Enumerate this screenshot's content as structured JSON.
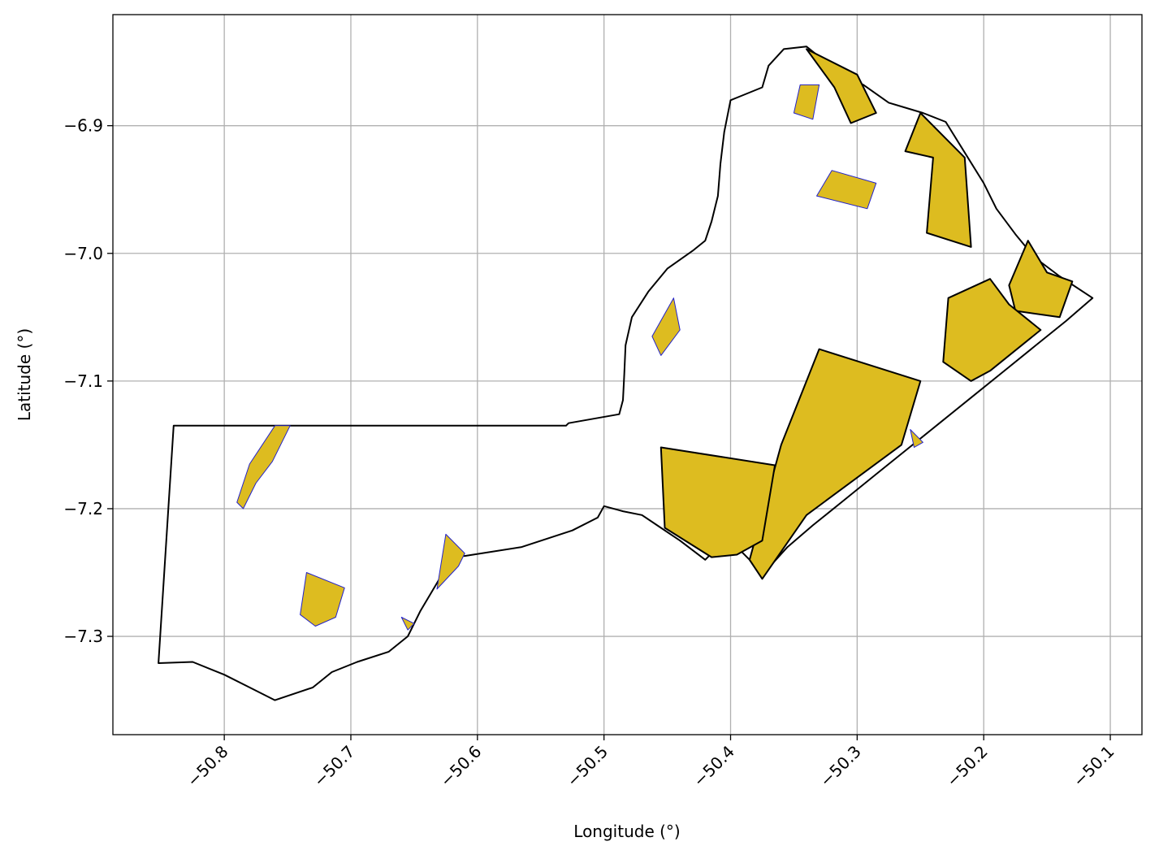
{
  "chart_data": {
    "type": "map",
    "xlabel": "Longitude (°)",
    "ylabel": "Latitude (°)",
    "xlim": [
      -50.888,
      -50.075
    ],
    "ylim": [
      -7.377,
      -6.813
    ],
    "xticks": [
      -50.8,
      -50.7,
      -50.6,
      -50.5,
      -50.4,
      -50.3,
      -50.2,
      -50.1
    ],
    "yticks": [
      -6.9,
      -7.0,
      -7.1,
      -7.2,
      -7.3
    ],
    "xtick_labels": [
      "−50.8",
      "−50.7",
      "−50.6",
      "−50.5",
      "−50.4",
      "−50.3",
      "−50.2",
      "−50.1"
    ],
    "ytick_labels": [
      "−6.9",
      "−7.0",
      "−7.1",
      "−7.2",
      "−7.3"
    ],
    "grid": true,
    "colors": {
      "fill": "#DDBC20",
      "inner_edge": "#2222CC",
      "outer_edge": "#000000",
      "grid": "#B0B0B0"
    },
    "boundary": [
      [
        -50.84,
        -7.135
      ],
      [
        -50.53,
        -7.135
      ],
      [
        -50.528,
        -7.133
      ],
      [
        -50.488,
        -7.126
      ],
      [
        -50.485,
        -7.115
      ],
      [
        -50.484,
        -7.095
      ],
      [
        -50.483,
        -7.072
      ],
      [
        -50.478,
        -7.05
      ],
      [
        -50.465,
        -7.03
      ],
      [
        -50.45,
        -7.012
      ],
      [
        -50.43,
        -6.998
      ],
      [
        -50.42,
        -6.99
      ],
      [
        -50.415,
        -6.975
      ],
      [
        -50.41,
        -6.955
      ],
      [
        -50.408,
        -6.93
      ],
      [
        -50.405,
        -6.905
      ],
      [
        -50.4,
        -6.88
      ],
      [
        -50.39,
        -6.876
      ],
      [
        -50.375,
        -6.87
      ],
      [
        -50.37,
        -6.853
      ],
      [
        -50.358,
        -6.84
      ],
      [
        -50.34,
        -6.838
      ],
      [
        -50.33,
        -6.846
      ],
      [
        -50.318,
        -6.857
      ],
      [
        -50.295,
        -6.868
      ],
      [
        -50.275,
        -6.882
      ],
      [
        -50.248,
        -6.89
      ],
      [
        -50.23,
        -6.897
      ],
      [
        -50.215,
        -6.921
      ],
      [
        -50.2,
        -6.945
      ],
      [
        -50.19,
        -6.965
      ],
      [
        -50.175,
        -6.985
      ],
      [
        -50.16,
        -7.003
      ],
      [
        -50.14,
        -7.018
      ],
      [
        -50.114,
        -7.035
      ],
      [
        -50.135,
        -7.053
      ],
      [
        -50.16,
        -7.073
      ],
      [
        -50.185,
        -7.093
      ],
      [
        -50.21,
        -7.113
      ],
      [
        -50.235,
        -7.133
      ],
      [
        -50.26,
        -7.153
      ],
      [
        -50.285,
        -7.173
      ],
      [
        -50.31,
        -7.193
      ],
      [
        -50.335,
        -7.213
      ],
      [
        -50.355,
        -7.23
      ],
      [
        -50.376,
        -7.253
      ],
      [
        -50.385,
        -7.24
      ],
      [
        -50.395,
        -7.23
      ],
      [
        -50.41,
        -7.23
      ],
      [
        -50.42,
        -7.24
      ],
      [
        -50.44,
        -7.225
      ],
      [
        -50.455,
        -7.215
      ],
      [
        -50.47,
        -7.205
      ],
      [
        -50.485,
        -7.202
      ],
      [
        -50.5,
        -7.198
      ],
      [
        -50.505,
        -7.207
      ],
      [
        -50.525,
        -7.217
      ],
      [
        -50.565,
        -7.23
      ],
      [
        -50.61,
        -7.237
      ],
      [
        -50.62,
        -7.237
      ],
      [
        -50.63,
        -7.255
      ],
      [
        -50.645,
        -7.28
      ],
      [
        -50.655,
        -7.3
      ],
      [
        -50.67,
        -7.312
      ],
      [
        -50.695,
        -7.32
      ],
      [
        -50.715,
        -7.328
      ],
      [
        -50.73,
        -7.34
      ],
      [
        -50.76,
        -7.35
      ],
      [
        -50.78,
        -7.34
      ],
      [
        -50.8,
        -7.33
      ],
      [
        -50.825,
        -7.32
      ],
      [
        -50.852,
        -7.321
      ]
    ],
    "outer_parcels": [
      [
        [
          -50.33,
          -7.075
        ],
        [
          -50.25,
          -7.1
        ],
        [
          -50.265,
          -7.15
        ],
        [
          -50.34,
          -7.205
        ],
        [
          -50.375,
          -7.255
        ],
        [
          -50.385,
          -7.24
        ],
        [
          -50.36,
          -7.15
        ]
      ],
      [
        [
          -50.455,
          -7.152
        ],
        [
          -50.365,
          -7.166
        ],
        [
          -50.375,
          -7.225
        ],
        [
          -50.395,
          -7.236
        ],
        [
          -50.415,
          -7.238
        ],
        [
          -50.452,
          -7.215
        ]
      ],
      [
        [
          -50.25,
          -6.89
        ],
        [
          -50.215,
          -6.925
        ],
        [
          -50.21,
          -6.995
        ],
        [
          -50.245,
          -6.984
        ],
        [
          -50.24,
          -6.925
        ],
        [
          -50.262,
          -6.92
        ]
      ],
      [
        [
          -50.165,
          -6.99
        ],
        [
          -50.15,
          -7.015
        ],
        [
          -50.13,
          -7.022
        ],
        [
          -50.14,
          -7.05
        ],
        [
          -50.175,
          -7.045
        ],
        [
          -50.18,
          -7.025
        ]
      ],
      [
        [
          -50.195,
          -7.02
        ],
        [
          -50.18,
          -7.04
        ],
        [
          -50.155,
          -7.06
        ],
        [
          -50.195,
          -7.092
        ],
        [
          -50.21,
          -7.1
        ],
        [
          -50.232,
          -7.085
        ],
        [
          -50.228,
          -7.035
        ]
      ],
      [
        [
          -50.34,
          -6.84
        ],
        [
          -50.3,
          -6.86
        ],
        [
          -50.285,
          -6.89
        ],
        [
          -50.305,
          -6.898
        ],
        [
          -50.318,
          -6.87
        ]
      ]
    ],
    "inner_parcels": [
      [
        [
          -50.76,
          -7.135
        ],
        [
          -50.748,
          -7.135
        ],
        [
          -50.762,
          -7.163
        ],
        [
          -50.775,
          -7.18
        ],
        [
          -50.785,
          -7.2
        ],
        [
          -50.79,
          -7.195
        ],
        [
          -50.78,
          -7.165
        ]
      ],
      [
        [
          -50.735,
          -7.25
        ],
        [
          -50.705,
          -7.262
        ],
        [
          -50.712,
          -7.285
        ],
        [
          -50.728,
          -7.292
        ],
        [
          -50.74,
          -7.283
        ]
      ],
      [
        [
          -50.625,
          -7.22
        ],
        [
          -50.61,
          -7.235
        ],
        [
          -50.615,
          -7.245
        ],
        [
          -50.632,
          -7.263
        ]
      ],
      [
        [
          -50.66,
          -7.285
        ],
        [
          -50.65,
          -7.29
        ],
        [
          -50.655,
          -7.295
        ]
      ],
      [
        [
          -50.445,
          -7.035
        ],
        [
          -50.44,
          -7.06
        ],
        [
          -50.455,
          -7.08
        ],
        [
          -50.462,
          -7.065
        ]
      ],
      [
        [
          -50.32,
          -6.935
        ],
        [
          -50.285,
          -6.945
        ],
        [
          -50.292,
          -6.965
        ],
        [
          -50.332,
          -6.955
        ]
      ],
      [
        [
          -50.345,
          -6.868
        ],
        [
          -50.33,
          -6.868
        ],
        [
          -50.335,
          -6.895
        ],
        [
          -50.35,
          -6.89
        ]
      ],
      [
        [
          -50.258,
          -7.138
        ],
        [
          -50.248,
          -7.148
        ],
        [
          -50.255,
          -7.152
        ]
      ]
    ]
  }
}
